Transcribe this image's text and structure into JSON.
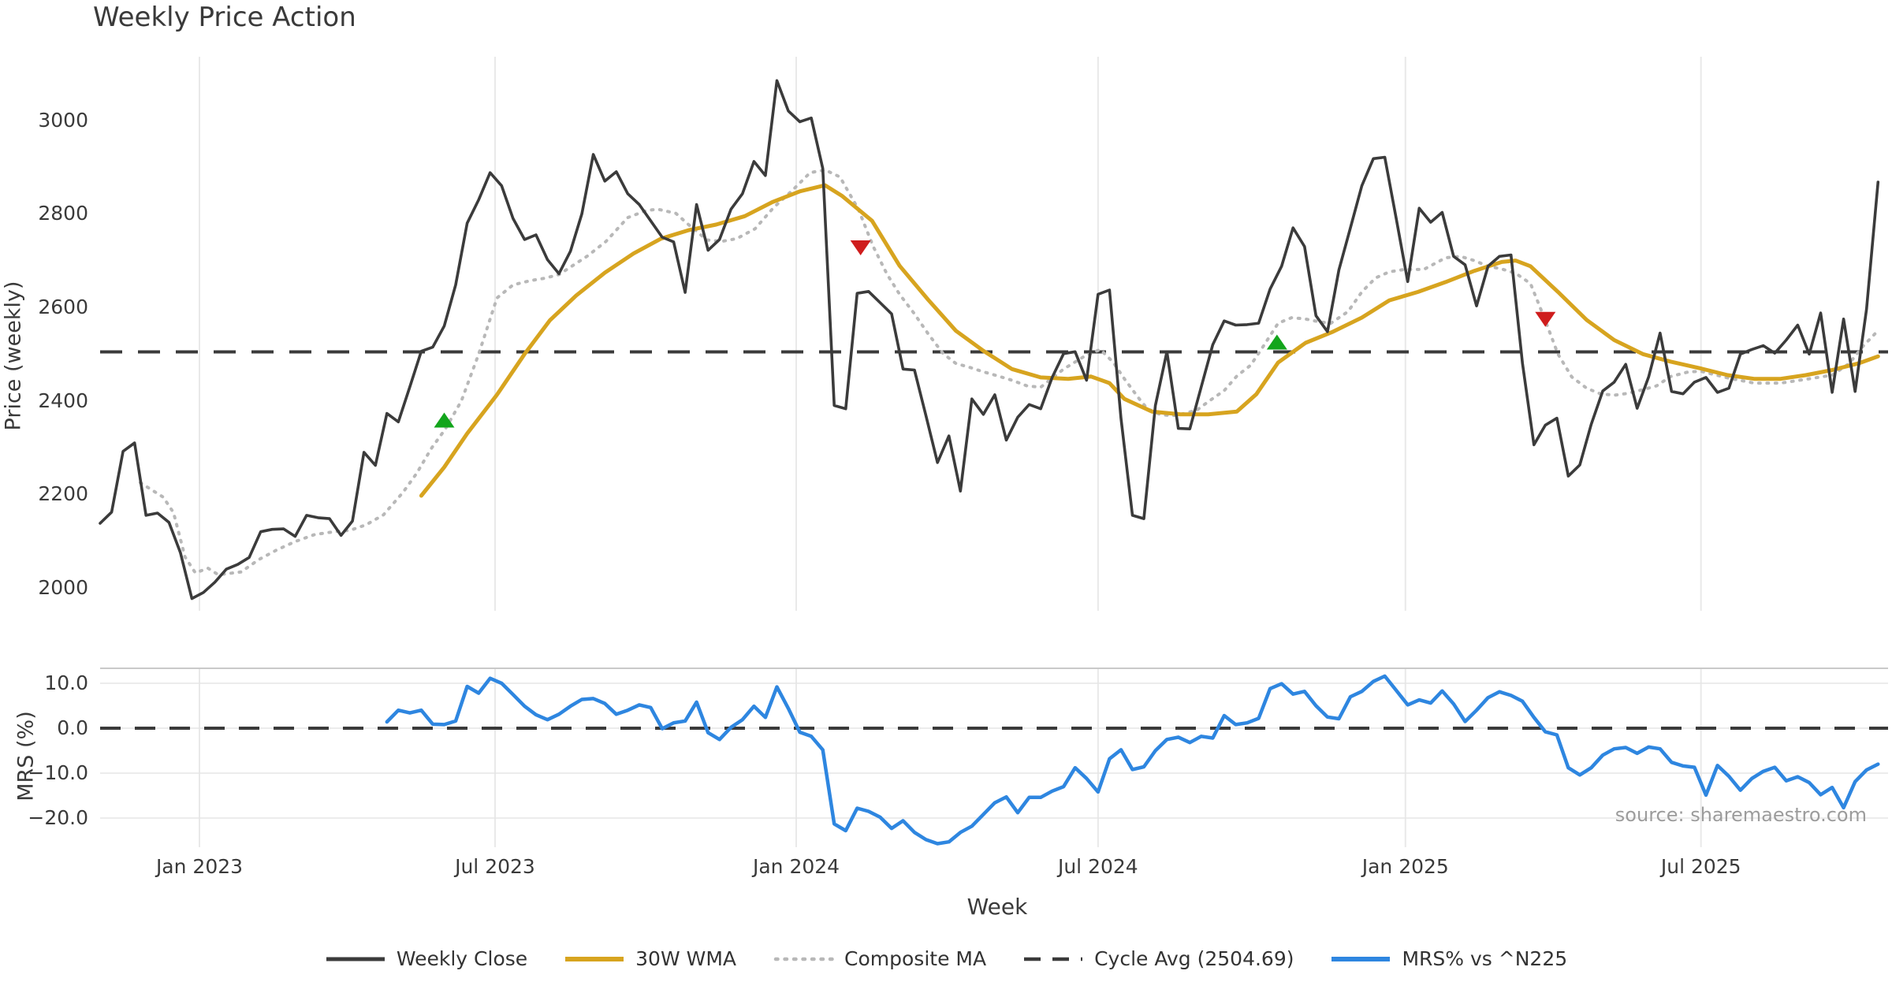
{
  "title": "Weekly Price Action",
  "source_note": "source: sharemaestro.com",
  "colors": {
    "weekly_close": "#3b3b3b",
    "wma30": "#d7a41f",
    "composite_ma": "#b8b8b8",
    "cycle_avg": "#3a3a3a",
    "mrs": "#2e86e0",
    "buy_marker": "#13a51c",
    "sell_marker": "#cf1d1d",
    "gridline": "#e9e9e9",
    "mrs_gridline": "#e6e6e6",
    "mrs_top_border": "#c9c9c9",
    "tick_text": "#3a3a3a",
    "source_text": "#9c9c9c"
  },
  "axes": {
    "price": {
      "label": "Price (weekly)",
      "ticks": [
        {
          "label": "3000",
          "value": 3000
        },
        {
          "label": "2800",
          "value": 2800
        },
        {
          "label": "2600",
          "value": 2600
        },
        {
          "label": "2400",
          "value": 2400
        },
        {
          "label": "2200",
          "value": 2200
        },
        {
          "label": "2000",
          "value": 2000
        }
      ]
    },
    "mrs": {
      "label": "MRS (%)",
      "ticks": [
        {
          "label": "10.0",
          "value": 10
        },
        {
          "label": "0.0",
          "value": 0
        },
        {
          "label": "−10.0",
          "value": -10
        },
        {
          "label": "−20.0",
          "value": -20
        }
      ]
    },
    "x": {
      "label": "Week",
      "ticks": [
        {
          "label": "Jan 2023",
          "week": 8.66
        },
        {
          "label": "Jul 2023",
          "week": 34.43
        },
        {
          "label": "Jan 2024",
          "week": 60.69
        },
        {
          "label": "Jul 2024",
          "week": 87.0
        },
        {
          "label": "Jan 2025",
          "week": 113.8
        },
        {
          "label": "Jul 2025",
          "week": 139.57
        }
      ]
    }
  },
  "legend": [
    {
      "label": "Weekly Close",
      "swatch": "solid-dark"
    },
    {
      "label": "30W WMA",
      "swatch": "solid-gold"
    },
    {
      "label": "Composite MA",
      "swatch": "dotted-gray"
    },
    {
      "label": "Cycle Avg (2504.69)",
      "swatch": "dashed-dark"
    },
    {
      "label": "MRS% vs ^N225",
      "swatch": "solid-blue"
    }
  ],
  "chart_data": {
    "type": "line",
    "title": "Weekly Price Action",
    "xlabel": "Week",
    "panels": [
      {
        "name": "price",
        "ylabel": "Price (weekly)",
        "ylim": [
          1940,
          3130
        ],
        "grid": "vertical-only"
      },
      {
        "name": "mrs",
        "ylabel": "MRS (%)",
        "ylim": [
          -26.5,
          13.4
        ],
        "grid": "horizontal+vertical"
      }
    ],
    "cycle_avg": 2504.69,
    "series": {
      "weekly_close": {
        "panel": "price",
        "start_week": 0,
        "step": 1,
        "values": [
          2138,
          2162,
          2292,
          2310,
          2155,
          2160,
          2140,
          2075,
          1977,
          1990,
          2012,
          2040,
          2050,
          2065,
          2120,
          2125,
          2126,
          2110,
          2155,
          2150,
          2148,
          2112,
          2143,
          2290,
          2262,
          2373,
          2355,
          2430,
          2506,
          2515,
          2560,
          2648,
          2780,
          2830,
          2888,
          2860,
          2790,
          2745,
          2755,
          2702,
          2672,
          2720,
          2800,
          2927,
          2870,
          2890,
          2843,
          2820,
          2785,
          2750,
          2740,
          2632,
          2820,
          2722,
          2745,
          2810,
          2843,
          2912,
          2882,
          3085,
          3020,
          2997,
          3005,
          2897,
          2390,
          2383,
          2630,
          2634,
          2610,
          2586,
          2468,
          2466,
          2368,
          2268,
          2325,
          2207,
          2404,
          2371,
          2413,
          2316,
          2365,
          2392,
          2383,
          2450,
          2501,
          2505,
          2444,
          2628,
          2637,
          2362,
          2155,
          2148,
          2390,
          2505,
          2341,
          2340,
          2430,
          2520,
          2571,
          2562,
          2563,
          2566,
          2639,
          2688,
          2770,
          2730,
          2582,
          2548,
          2680,
          2770,
          2860,
          2918,
          2921,
          2789,
          2655,
          2812,
          2782,
          2803,
          2709,
          2691,
          2603,
          2688,
          2709,
          2712,
          2481,
          2306,
          2348,
          2363,
          2239,
          2263,
          2350,
          2421,
          2440,
          2478,
          2384,
          2451,
          2545,
          2420,
          2415,
          2440,
          2450,
          2418,
          2427,
          2500,
          2510,
          2518,
          2502,
          2530,
          2562,
          2500,
          2588,
          2418,
          2575,
          2420,
          2596,
          2868
        ]
      },
      "wma30": {
        "panel": "price",
        "anchors": [
          [
            28,
            2197
          ],
          [
            30,
            2258
          ],
          [
            32,
            2330
          ],
          [
            34.6,
            2413
          ],
          [
            37,
            2500
          ],
          [
            39.2,
            2572
          ],
          [
            41.5,
            2625
          ],
          [
            44,
            2674
          ],
          [
            46.5,
            2715
          ],
          [
            48.9,
            2747
          ],
          [
            51.3,
            2765
          ],
          [
            53.7,
            2777
          ],
          [
            56.2,
            2795
          ],
          [
            58.6,
            2825
          ],
          [
            61,
            2848
          ],
          [
            63.2,
            2861
          ],
          [
            64.7,
            2838
          ],
          [
            67.3,
            2785
          ],
          [
            69.7,
            2689
          ],
          [
            72.2,
            2616
          ],
          [
            74.6,
            2550
          ],
          [
            77,
            2507
          ],
          [
            79.5,
            2468
          ],
          [
            82,
            2450
          ],
          [
            84.4,
            2447
          ],
          [
            86.4,
            2452
          ],
          [
            88,
            2438
          ],
          [
            89.3,
            2404
          ],
          [
            91.7,
            2377
          ],
          [
            94.2,
            2371
          ],
          [
            96.6,
            2371
          ],
          [
            99.1,
            2377
          ],
          [
            100.8,
            2414
          ],
          [
            102.7,
            2482
          ],
          [
            105.1,
            2524
          ],
          [
            107.5,
            2548
          ],
          [
            110,
            2578
          ],
          [
            112.4,
            2615
          ],
          [
            114.9,
            2633
          ],
          [
            117.3,
            2654
          ],
          [
            119.8,
            2678
          ],
          [
            122.2,
            2697
          ],
          [
            123.4,
            2700
          ],
          [
            124.7,
            2688
          ],
          [
            127.1,
            2633
          ],
          [
            129.6,
            2573
          ],
          [
            132,
            2530
          ],
          [
            134.5,
            2500
          ],
          [
            136.9,
            2484
          ],
          [
            139.6,
            2469
          ],
          [
            141.9,
            2455
          ],
          [
            144.2,
            2447
          ],
          [
            146.5,
            2447
          ],
          [
            148.7,
            2455
          ],
          [
            151,
            2466
          ],
          [
            153.3,
            2480
          ],
          [
            155,
            2495
          ]
        ]
      },
      "composite_ma": {
        "panel": "price",
        "anchors": [
          [
            3.5,
            2225
          ],
          [
            5.5,
            2194
          ],
          [
            6.4,
            2161
          ],
          [
            7.4,
            2066
          ],
          [
            8.3,
            2032
          ],
          [
            9.4,
            2042
          ],
          [
            10.3,
            2028
          ],
          [
            12.3,
            2034
          ],
          [
            13.8,
            2060
          ],
          [
            15.4,
            2081
          ],
          [
            17,
            2099
          ],
          [
            18.7,
            2114
          ],
          [
            20.4,
            2120
          ],
          [
            21.8,
            2123
          ],
          [
            23.2,
            2135
          ],
          [
            24.7,
            2156
          ],
          [
            26.4,
            2204
          ],
          [
            27.6,
            2245
          ],
          [
            28.9,
            2299
          ],
          [
            30.1,
            2340
          ],
          [
            31.5,
            2400
          ],
          [
            33,
            2500
          ],
          [
            34.6,
            2620
          ],
          [
            36,
            2648
          ],
          [
            37.5,
            2657
          ],
          [
            38.7,
            2662
          ],
          [
            40,
            2670
          ],
          [
            42.5,
            2710
          ],
          [
            44.1,
            2741
          ],
          [
            46,
            2792
          ],
          [
            47.6,
            2807
          ],
          [
            48.6,
            2810
          ],
          [
            50.2,
            2801
          ],
          [
            51.3,
            2777
          ],
          [
            52.9,
            2744
          ],
          [
            54.2,
            2741
          ],
          [
            55.5,
            2747
          ],
          [
            57.1,
            2768
          ],
          [
            58.7,
            2813
          ],
          [
            60.3,
            2849
          ],
          [
            61.9,
            2888
          ],
          [
            63.2,
            2894
          ],
          [
            64.5,
            2879
          ],
          [
            66.1,
            2810
          ],
          [
            67.4,
            2730
          ],
          [
            68.6,
            2671
          ],
          [
            69.7,
            2628
          ],
          [
            71,
            2586
          ],
          [
            72.2,
            2543
          ],
          [
            73.5,
            2501
          ],
          [
            74.6,
            2480
          ],
          [
            75.9,
            2471
          ],
          [
            77,
            2462
          ],
          [
            78.3,
            2453
          ],
          [
            79.5,
            2444
          ],
          [
            80.8,
            2432
          ],
          [
            82,
            2429
          ],
          [
            84,
            2468
          ],
          [
            85.8,
            2495
          ],
          [
            87.2,
            2510
          ],
          [
            88.3,
            2483
          ],
          [
            89.3,
            2447
          ],
          [
            90.6,
            2404
          ],
          [
            91.3,
            2383
          ],
          [
            92.4,
            2371
          ],
          [
            93.4,
            2368
          ],
          [
            94.2,
            2371
          ],
          [
            95.6,
            2380
          ],
          [
            96.6,
            2398
          ],
          [
            98,
            2422
          ],
          [
            99.1,
            2453
          ],
          [
            100.3,
            2476
          ],
          [
            101.5,
            2520
          ],
          [
            102.7,
            2566
          ],
          [
            103.9,
            2578
          ],
          [
            105.1,
            2575
          ],
          [
            106.3,
            2569
          ],
          [
            107.3,
            2566
          ],
          [
            108.8,
            2591
          ],
          [
            110,
            2633
          ],
          [
            111.2,
            2663
          ],
          [
            112.4,
            2676
          ],
          [
            113.7,
            2681
          ],
          [
            115.4,
            2681
          ],
          [
            117.3,
            2706
          ],
          [
            118.6,
            2709
          ],
          [
            119.8,
            2700
          ],
          [
            121,
            2688
          ],
          [
            122.2,
            2682
          ],
          [
            123.4,
            2673
          ],
          [
            124.7,
            2651
          ],
          [
            125.9,
            2578
          ],
          [
            127.1,
            2500
          ],
          [
            128.3,
            2451
          ],
          [
            129.6,
            2427
          ],
          [
            130.8,
            2415
          ],
          [
            132,
            2412
          ],
          [
            133.2,
            2416
          ],
          [
            134.5,
            2424
          ],
          [
            135.7,
            2432
          ],
          [
            136.9,
            2452
          ],
          [
            138.5,
            2462
          ],
          [
            139.6,
            2463
          ],
          [
            141.9,
            2449
          ],
          [
            144.2,
            2438
          ],
          [
            146.5,
            2438
          ],
          [
            148.7,
            2446
          ],
          [
            151,
            2455
          ],
          [
            152.5,
            2480
          ],
          [
            153.7,
            2517
          ],
          [
            154.8,
            2545
          ]
        ]
      },
      "mrs": {
        "panel": "mrs",
        "start_week": 25,
        "step": 1,
        "values": [
          1.4,
          4.0,
          3.4,
          4.0,
          0.9,
          0.8,
          1.6,
          9.3,
          7.8,
          11.1,
          10.0,
          7.5,
          4.9,
          3.0,
          1.9,
          3.1,
          4.9,
          6.4,
          6.6,
          5.5,
          3.1,
          4.0,
          5.2,
          4.6,
          -0.1,
          1.2,
          1.6,
          5.8,
          -1.0,
          -2.5,
          0.2,
          1.9,
          4.9,
          2.4,
          9.2,
          4.4,
          -0.9,
          -1.8,
          -4.8,
          -21.3,
          -22.8,
          -17.8,
          -18.5,
          -19.8,
          -22.3,
          -20.6,
          -23.2,
          -24.8,
          -25.7,
          -25.3,
          -23.2,
          -21.8,
          -19.2,
          -16.6,
          -15.3,
          -18.8,
          -15.4,
          -15.4,
          -14.0,
          -13.0,
          -8.8,
          -11.2,
          -14.2,
          -6.8,
          -4.8,
          -9.2,
          -8.6,
          -5.0,
          -2.5,
          -2.0,
          -3.2,
          -1.8,
          -2.2,
          2.8,
          0.8,
          1.2,
          2.2,
          8.8,
          9.9,
          7.6,
          8.2,
          5.0,
          2.5,
          2.1,
          7.0,
          8.2,
          10.4,
          11.6,
          8.4,
          5.2,
          6.3,
          5.6,
          8.3,
          5.4,
          1.5,
          4.0,
          6.8,
          8.1,
          7.3,
          6.0,
          2.4,
          -0.8,
          -1.5,
          -8.8,
          -10.4,
          -8.8,
          -6.0,
          -4.6,
          -4.3,
          -5.6,
          -4.2,
          -4.6,
          -7.6,
          -8.4,
          -8.7,
          -14.9,
          -8.3,
          -10.7,
          -13.8,
          -11.2,
          -9.6,
          -8.7,
          -11.7,
          -10.8,
          -12.1,
          -14.8,
          -13.2,
          -17.7,
          -11.9,
          -9.3,
          -8.0
        ]
      },
      "buy_signals": [
        {
          "week": 30,
          "price": 2358
        },
        {
          "week": 102.6,
          "price": 2525
        }
      ],
      "sell_signals": [
        {
          "week": 66.3,
          "price": 2728
        },
        {
          "week": 126,
          "price": 2575
        }
      ]
    }
  }
}
